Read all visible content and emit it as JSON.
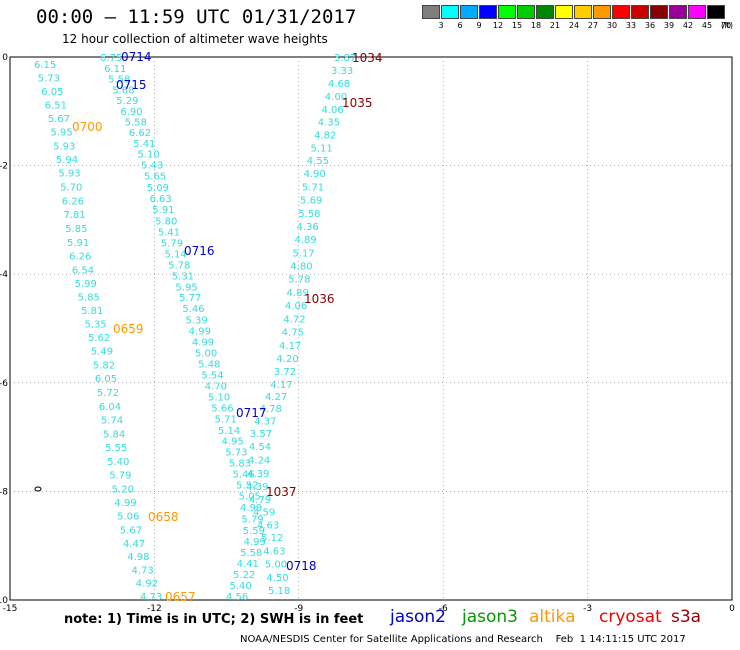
{
  "header": {
    "title": "00:00 – 11:59 UTC 01/31/2017",
    "subtitle": "12 hour collection of altimeter wave heights"
  },
  "legend": {
    "unit_label": "(ft)",
    "bins": [
      {
        "label": "3",
        "color": "#7f7f7f"
      },
      {
        "label": "6",
        "color": "#00ffff"
      },
      {
        "label": "9",
        "color": "#00aaff"
      },
      {
        "label": "12",
        "color": "#0000ff"
      },
      {
        "label": "15",
        "color": "#00ff00"
      },
      {
        "label": "18",
        "color": "#00cc00"
      },
      {
        "label": "21",
        "color": "#008800"
      },
      {
        "label": "24",
        "color": "#ffff00"
      },
      {
        "label": "27",
        "color": "#ffcc00"
      },
      {
        "label": "30",
        "color": "#ff9900"
      },
      {
        "label": "33",
        "color": "#ff0000"
      },
      {
        "label": "36",
        "color": "#cc0000"
      },
      {
        "label": "39",
        "color": "#880000"
      },
      {
        "label": "42",
        "color": "#990099"
      },
      {
        "label": "45",
        "color": "#ff00ff"
      },
      {
        "label": "70",
        "color": "#000000"
      }
    ]
  },
  "axes": {
    "lon_ticks": [
      "-15",
      "-12",
      "-9",
      "-6",
      "-3",
      "0"
    ],
    "lat_ticks": [
      "0",
      "-2",
      "-4",
      "-6",
      "-8",
      "-10"
    ]
  },
  "tracks": [
    {
      "name": "pass-0700",
      "color": "#33dddd",
      "label": "0700",
      "label_color": "#ff9900",
      "values": [
        "6.15",
        "5.73",
        "6.05",
        "6.51",
        "5.67",
        "5.95",
        "5.93",
        "5.94",
        "5.93",
        "5.70",
        "6.26",
        "7.81",
        "5.85",
        "5.91",
        "6.26",
        "6.54",
        "5.99",
        "5.85",
        "5.81",
        "5.35",
        "5.62",
        "5.49",
        "5.82",
        "6.05",
        "5.72",
        "6.04",
        "5.74",
        "5.84",
        "5.55",
        "5.40",
        "5.79",
        "5.20",
        "4.99",
        "5.06",
        "5.67",
        "4.47",
        "4.98",
        "4.73",
        "4.92",
        "4.73"
      ]
    },
    {
      "name": "pass-0715",
      "color": "#33dddd",
      "label": "0715",
      "label_color": "#0000cc",
      "values": [
        "6.75",
        "6.11",
        "5.58",
        "5.68",
        "5.29",
        "6.90",
        "5.58",
        "6.62",
        "5.41",
        "5.10",
        "5.43",
        "5.65",
        "5.09",
        "6.63",
        "5.91",
        "5.80",
        "5.41",
        "5.79",
        "5.14",
        "5.78",
        "5.31",
        "5.95",
        "5.77",
        "5.46",
        "5.39",
        "4.99",
        "4.99",
        "5.00",
        "5.48",
        "5.54",
        "4.70",
        "5.10",
        "5.66",
        "5.71",
        "5.14",
        "4.95",
        "5.73",
        "5.83",
        "5.46",
        "5.52",
        "5.05",
        "4.99",
        "5.79",
        "5.59",
        "4.99",
        "5.58",
        "4.41",
        "5.22",
        "5.40",
        "4.56"
      ]
    },
    {
      "name": "pass-1035",
      "color": "#33dddd",
      "label": "1035",
      "label_color": "#880000",
      "values": [
        "3.87",
        "3.33",
        "4.68",
        "4.00",
        "4.06",
        "4.35",
        "4.82",
        "5.11",
        "4.55",
        "4.90",
        "5.71",
        "5.69",
        "5.58",
        "4.36",
        "4.89",
        "5.17",
        "4.80",
        "5.78",
        "4.89",
        "4.06",
        "4.72",
        "4.75",
        "4.17",
        "4.20",
        "3.72",
        "4.17",
        "4.27",
        "4.78",
        "4.37",
        "3.57",
        "4.54",
        "4.24",
        "4.39",
        "4.39",
        "4.79",
        "4.59",
        "4.63",
        "5.12",
        "4.63",
        "5.00",
        "4.50",
        "5.18"
      ]
    }
  ],
  "pass_labels": [
    {
      "text": "0714",
      "color": "#0000cc"
    },
    {
      "text": "0716",
      "color": "#0000cc"
    },
    {
      "text": "0717",
      "color": "#0000cc"
    },
    {
      "text": "0718",
      "color": "#0000cc"
    },
    {
      "text": "0659",
      "color": "#ff9900"
    },
    {
      "text": "0658",
      "color": "#ff9900"
    },
    {
      "text": "0657",
      "color": "#ff9900"
    },
    {
      "text": "1034",
      "color": "#880000"
    },
    {
      "text": "1036",
      "color": "#880000"
    },
    {
      "text": "1037",
      "color": "#880000"
    }
  ],
  "footer": {
    "note": "note:  1) Time is in UTC;  2) SWH is in feet",
    "satellites": [
      {
        "name": "jason2",
        "color": "#0000cc"
      },
      {
        "name": "jason3",
        "color": "#009900"
      },
      {
        "name": "altika",
        "color": "#ff9900"
      },
      {
        "name": "cryosat",
        "color": "#ee0000"
      },
      {
        "name": "s3a",
        "color": "#990000"
      }
    ],
    "credit": "NOAA/NESDIS Center for Satellite Applications and Research    Feb  1 14:11:15 UTC 2017"
  }
}
